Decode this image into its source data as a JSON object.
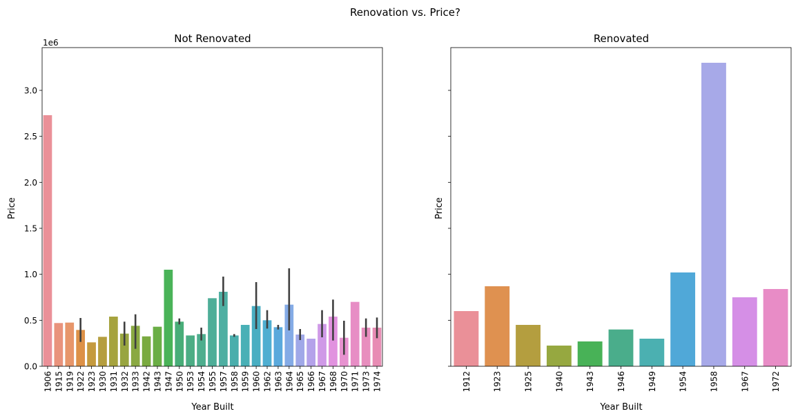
{
  "figure": {
    "suptitle": "Renovation vs. Price?"
  },
  "chart_data": [
    {
      "type": "bar",
      "title": "Not Renovated",
      "xlabel": "Year Built",
      "ylabel": "Price",
      "offset_label": "1e6",
      "ylim": [
        0,
        3465000
      ],
      "yticks": [
        0.0,
        0.5,
        1.0,
        1.5,
        2.0,
        2.5,
        3.0
      ],
      "ytick_labels": [
        "0.0",
        "0.5",
        "1.0",
        "1.5",
        "2.0",
        "2.5",
        "3.0"
      ],
      "categories": [
        "1906",
        "1915",
        "1919",
        "1922",
        "1923",
        "1930",
        "1931",
        "1932",
        "1933",
        "1942",
        "1943",
        "1947",
        "1950",
        "1953",
        "1954",
        "1955",
        "1957",
        "1958",
        "1959",
        "1960",
        "1962",
        "1963",
        "1964",
        "1965",
        "1966",
        "1967",
        "1968",
        "1970",
        "1971",
        "1973",
        "1974"
      ],
      "values": [
        2730000,
        470000,
        475000,
        395000,
        260000,
        320000,
        540000,
        355000,
        440000,
        325000,
        430000,
        1050000,
        485000,
        335000,
        350000,
        740000,
        810000,
        335000,
        450000,
        655000,
        500000,
        425000,
        670000,
        345000,
        300000,
        460000,
        540000,
        310000,
        700000,
        420000,
        420000
      ],
      "error_low": [
        null,
        null,
        null,
        265000,
        null,
        null,
        null,
        225000,
        190000,
        null,
        null,
        null,
        455000,
        null,
        280000,
        null,
        655000,
        320000,
        null,
        405000,
        410000,
        400000,
        390000,
        285000,
        null,
        315000,
        280000,
        125000,
        null,
        320000,
        305000
      ],
      "error_high": [
        null,
        null,
        null,
        525000,
        null,
        null,
        null,
        485000,
        565000,
        null,
        null,
        null,
        520000,
        null,
        420000,
        null,
        975000,
        350000,
        null,
        915000,
        610000,
        450000,
        1065000,
        405000,
        null,
        610000,
        725000,
        495000,
        null,
        520000,
        530000
      ],
      "colors": [
        "#ea9098",
        "#e9937c",
        "#e7966a",
        "#dd9147",
        "#c59a3e",
        "#b59e3f",
        "#a6a33e",
        "#98a540",
        "#8aa942",
        "#7aaa40",
        "#6aae45",
        "#4ab358",
        "#48ad78",
        "#4cad85",
        "#4eae8e",
        "#4eae98",
        "#4eafa2",
        "#4aaeac",
        "#49b0b6",
        "#49aec2",
        "#4faed1",
        "#5aa9dc",
        "#84abe6",
        "#a0a8e8",
        "#b4a2ea",
        "#cf99e7",
        "#e192df",
        "#e792d0",
        "#e78dc5",
        "#e88ebe",
        "#e88cb4"
      ],
      "grid": false
    },
    {
      "type": "bar",
      "title": "Renovated",
      "xlabel": "Year Built",
      "ylabel": "Price",
      "ylim": [
        0,
        3465000
      ],
      "categories": [
        "1912",
        "1923",
        "1925",
        "1940",
        "1943",
        "1946",
        "1949",
        "1954",
        "1958",
        "1967",
        "1972"
      ],
      "values": [
        600000,
        870000,
        450000,
        225000,
        270000,
        400000,
        300000,
        1020000,
        3300000,
        750000,
        840000
      ],
      "colors": [
        "#ea9098",
        "#df9150",
        "#b49e3f",
        "#96a840",
        "#48b257",
        "#4aad8b",
        "#4bb0b1",
        "#50a8d8",
        "#a7a9e8",
        "#d58fe6",
        "#e88cc6"
      ],
      "grid": false
    }
  ]
}
